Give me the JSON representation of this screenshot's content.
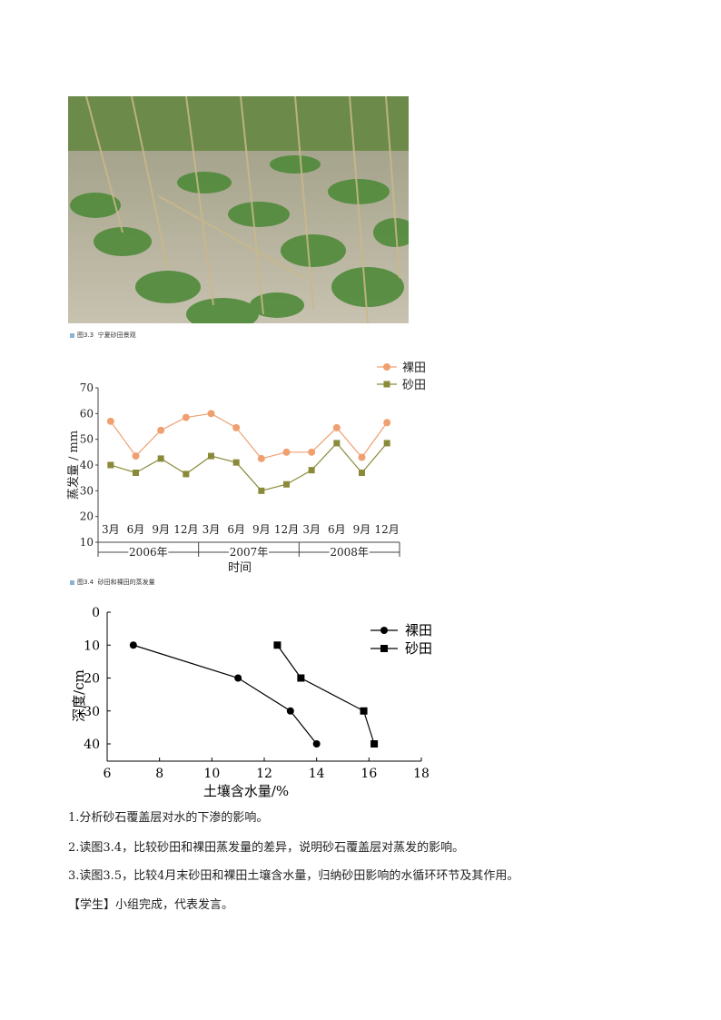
{
  "fig1": {
    "caption_num": "图3.3",
    "caption_text": "宁夏砂田景观"
  },
  "fig2": {
    "caption_num": "图3.4",
    "caption_text": "砂田和裸田的蒸发量",
    "colors": {
      "bare": "#f0a070",
      "sand": "#8a8a3a"
    }
  },
  "fig3": {
    "colors": {
      "line": "#000000"
    }
  },
  "chart_data": [
    {
      "type": "line",
      "title": "",
      "xlabel": "时间",
      "ylabel": "蒸发量 / mm",
      "ylim": [
        10,
        70
      ],
      "yticks": [
        10,
        20,
        30,
        40,
        50,
        60,
        70
      ],
      "categories": [
        "3月",
        "6月",
        "9月",
        "12月",
        "3月",
        "6月",
        "9月",
        "12月",
        "3月",
        "6月",
        "9月",
        "12月"
      ],
      "year_groups": [
        "2006年",
        "2007年",
        "2008年"
      ],
      "legend_position": "top-right",
      "series": [
        {
          "name": "裸田",
          "values": [
            57,
            43.5,
            53.5,
            58.5,
            60,
            54.5,
            42.5,
            45,
            45,
            54.5,
            43,
            56.5
          ]
        },
        {
          "name": "砂田",
          "values": [
            40,
            37,
            42.5,
            36.5,
            43.5,
            41,
            30,
            32.5,
            38,
            48.5,
            37,
            48.5
          ]
        }
      ]
    },
    {
      "type": "line",
      "title": "",
      "xlabel": "土壤含水量/%",
      "ylabel": "深度/cm",
      "xlim": [
        6,
        18
      ],
      "ylim": [
        0,
        40
      ],
      "xticks": [
        6,
        8,
        10,
        12,
        14,
        16,
        18
      ],
      "yticks": [
        0,
        10,
        20,
        30,
        40
      ],
      "y_inverted": true,
      "legend_position": "top-right",
      "series": [
        {
          "name": "裸田",
          "marker": "circle",
          "x": [
            7,
            11,
            13,
            14
          ],
          "y": [
            10,
            20,
            30,
            40
          ]
        },
        {
          "name": "砂田",
          "marker": "square",
          "x": [
            12.5,
            13.4,
            15.8,
            16.2
          ],
          "y": [
            10,
            20,
            30,
            40
          ]
        }
      ]
    }
  ],
  "questions": [
    "1.分析砂石覆盖层对水的下渗的影响。",
    "2.读图3.4，比较砂田和裸田蒸发量的差异，说明砂石覆盖层对蒸发的影响。",
    "3.读图3.5，比较4月末砂田和裸田土壤含水量，归纳砂田影响的水循环环节及其作用。",
    "【学生】小组完成，代表发言。"
  ]
}
